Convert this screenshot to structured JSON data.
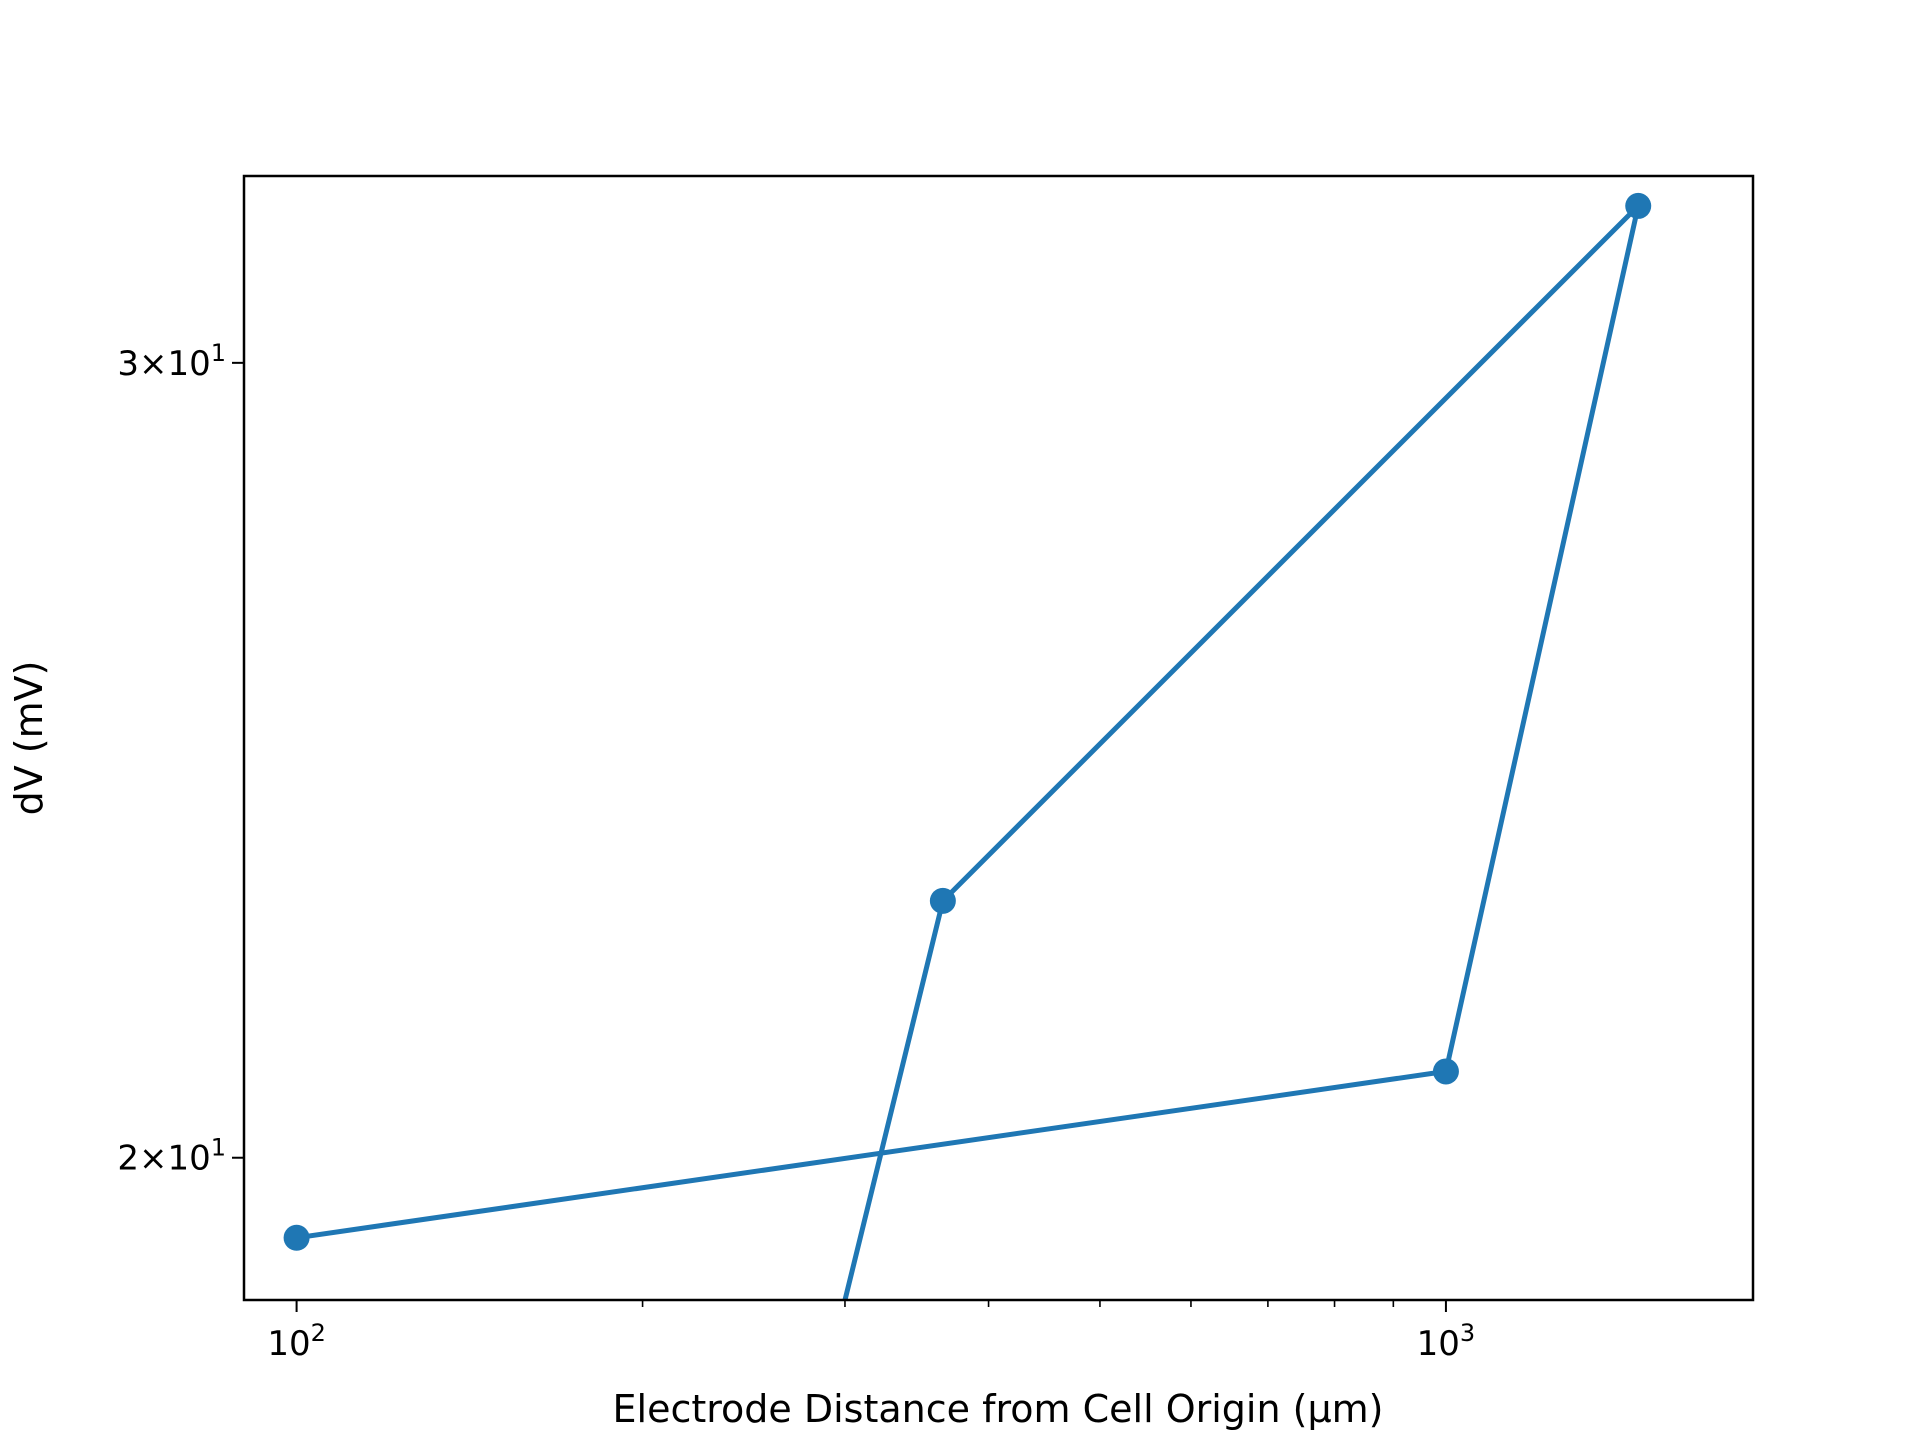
{
  "chart_data": {
    "type": "line",
    "title": "",
    "xlabel": "Electrode Distance from Cell Origin (μm)",
    "ylabel": "dV (mV)",
    "xscale": "log",
    "yscale": "log",
    "xlim": [
      90,
      1850
    ],
    "ylim": [
      18.6,
      33.0
    ],
    "grid": false,
    "legend": "none",
    "x_tick_labels": [
      {
        "value": 100,
        "base": "10",
        "exp": "2"
      },
      {
        "value": 1000,
        "base": "10",
        "exp": "3"
      }
    ],
    "y_tick_labels": [
      {
        "value": 20,
        "mant": "2",
        "base": "10",
        "exp": "1"
      },
      {
        "value": 30,
        "mant": "3",
        "base": "10",
        "exp": "1"
      }
    ],
    "series": [
      {
        "color": "#1f77b4",
        "marker": "o",
        "points": [
          {
            "x": 100,
            "y": 19.2
          },
          {
            "x": 1000,
            "y": 20.9
          },
          {
            "x": 1470,
            "y": 32.5
          },
          {
            "x": 365,
            "y": 22.8
          },
          {
            "x": 300,
            "y": 18.6
          }
        ],
        "markers_visible": [
          true,
          true,
          true,
          true,
          false
        ]
      }
    ]
  }
}
